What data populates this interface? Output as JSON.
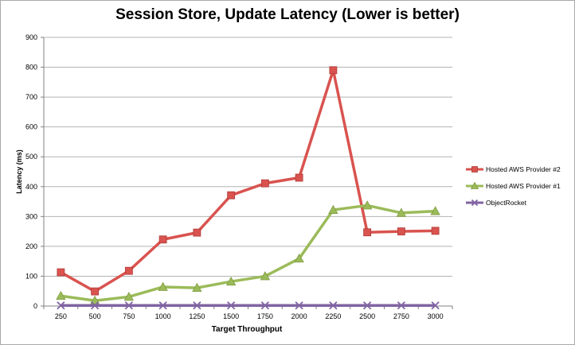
{
  "chart_data": {
    "type": "line",
    "title": "Session Store, Update Latency (Lower is better)",
    "xlabel": "Target Throughput",
    "ylabel": "Latency (ms)",
    "categories": [
      "250",
      "500",
      "750",
      "1000",
      "1250",
      "1500",
      "1750",
      "2000",
      "2250",
      "2500",
      "2750",
      "3000"
    ],
    "yticks": [
      "0",
      "100",
      "200",
      "300",
      "400",
      "500",
      "600",
      "700",
      "800",
      "900"
    ],
    "ylim": [
      0,
      900
    ],
    "grid": true,
    "legend_position": "right",
    "series": [
      {
        "name": "Hosted AWS Provider #2",
        "color": "#d9534f",
        "marker": "square",
        "values": [
          113,
          49,
          118,
          223,
          246,
          371,
          411,
          430,
          790,
          247,
          250,
          252
        ]
      },
      {
        "name": "Hosted AWS Provider #1",
        "color": "#9bbb59",
        "marker": "triangle",
        "values": [
          34,
          18,
          31,
          64,
          61,
          82,
          100,
          159,
          322,
          337,
          312,
          318
        ]
      },
      {
        "name": "ObjectRocket",
        "color": "#8064a2",
        "marker": "x",
        "values": [
          2,
          2,
          2,
          2,
          2,
          2,
          2,
          2,
          2,
          2,
          2,
          2
        ]
      }
    ]
  }
}
